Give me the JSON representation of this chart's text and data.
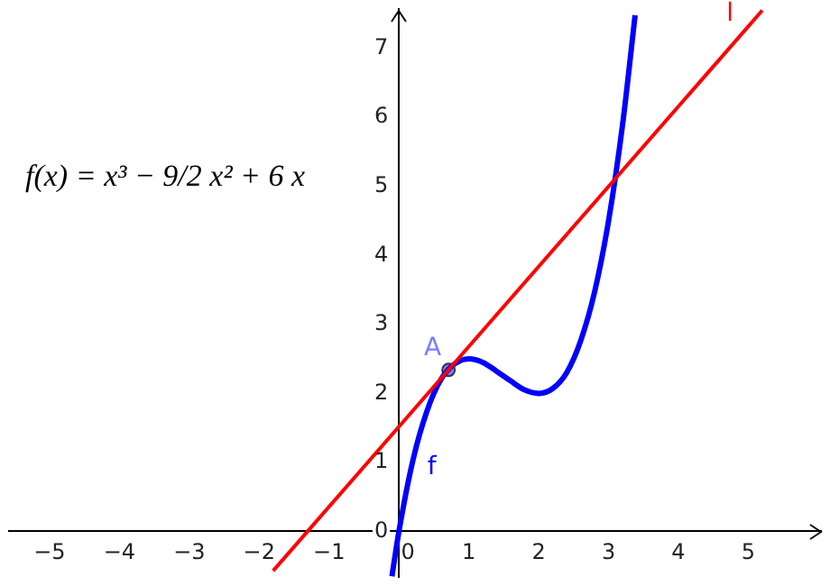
{
  "chart_data": {
    "type": "line",
    "xlim": [
      -5.58,
      6.04
    ],
    "ylim": [
      -0.66,
      7.57
    ],
    "xticks": [
      -5,
      -4,
      -3,
      -2,
      -1,
      0,
      1,
      2,
      3,
      4,
      5
    ],
    "yticks": [
      0,
      1,
      2,
      3,
      4,
      5,
      6,
      7
    ],
    "grid": false,
    "legend": false,
    "series": [
      {
        "name": "l",
        "color": "#ff0000",
        "x": [
          -1.8,
          5.2
        ],
        "values": [
          -0.57,
          7.55
        ]
      },
      {
        "name": "f",
        "color": "#0000ff",
        "x": [
          -0.1,
          0,
          0.2,
          0.4,
          0.6,
          0.8,
          1.0,
          1.2,
          1.4,
          1.6,
          1.8,
          2.0,
          2.2,
          2.4,
          2.6,
          2.8,
          3.0,
          3.2,
          3.38
        ],
        "values": [
          -0.65,
          0,
          1.03,
          1.74,
          2.2,
          2.43,
          2.5,
          2.45,
          2.32,
          2.18,
          2.05,
          2,
          2.07,
          2.3,
          2.76,
          3.47,
          4.5,
          5.89,
          7.48
        ]
      },
      {
        "type": "scatter",
        "name": "A",
        "color": "#7b7bff",
        "marker": "circle",
        "x": [
          0.71
        ],
        "values": [
          2.34
        ]
      }
    ],
    "annotations": [
      "f(x) = x³ − 9/2 x² + 6 x"
    ]
  }
}
